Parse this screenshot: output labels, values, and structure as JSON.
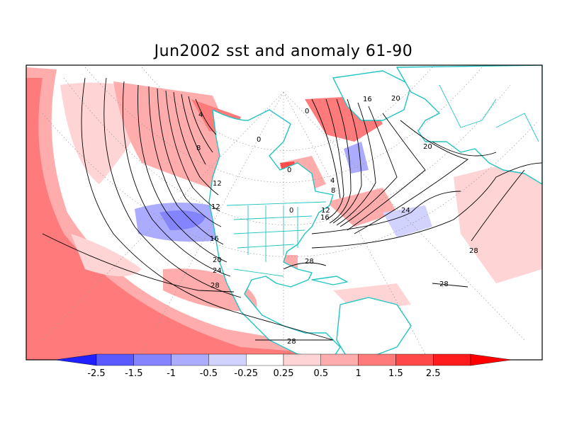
{
  "title": "Jun2002 sst and anomaly 61-90",
  "colors": {
    "background": "#ffffff",
    "coastline": "#22c4c4",
    "contour": "#000000",
    "grid": "#999999"
  },
  "colorbar": {
    "segments": [
      {
        "color": "#2020ff",
        "label": ""
      },
      {
        "color": "#5a5aff",
        "label": "-2.5"
      },
      {
        "color": "#8484ff",
        "label": "-1.5"
      },
      {
        "color": "#acacff",
        "label": "-1"
      },
      {
        "color": "#d2d2ff",
        "label": "-0.5"
      },
      {
        "color": "#ffffff",
        "label": "-0.25"
      },
      {
        "color": "#ffd4d4",
        "label": "0.25"
      },
      {
        "color": "#ffacac",
        "label": "0.5"
      },
      {
        "color": "#ff7a7a",
        "label": "1"
      },
      {
        "color": "#ff4848",
        "label": "1.5"
      },
      {
        "color": "#ff1c1c",
        "label": "2.5"
      },
      {
        "color": "#ff0000",
        "label": ""
      }
    ]
  },
  "contour_labels": [
    "0",
    "4",
    "8",
    "12",
    "12",
    "16",
    "16",
    "20",
    "20",
    "24",
    "24",
    "28",
    "28",
    "28",
    "28",
    "28",
    "4",
    "8",
    "12",
    "16",
    "0",
    "0",
    "0",
    "20"
  ]
}
